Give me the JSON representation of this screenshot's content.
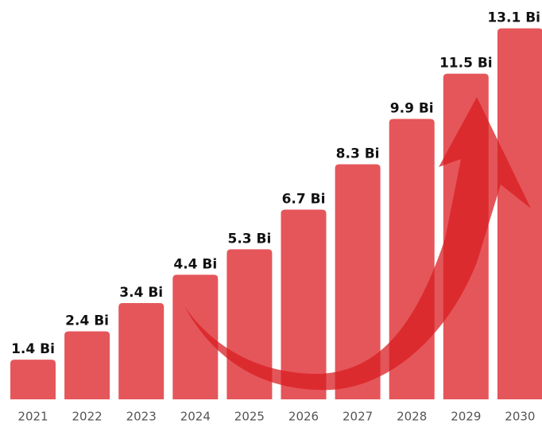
{
  "chart_data": {
    "type": "bar",
    "categories": [
      "2021",
      "2022",
      "2023",
      "2024",
      "2025",
      "2026",
      "2027",
      "2028",
      "2029",
      "2030"
    ],
    "values": [
      1.4,
      2.4,
      3.4,
      4.4,
      5.3,
      6.7,
      8.3,
      9.9,
      11.5,
      13.1
    ],
    "value_labels": [
      "1.4 Bi",
      "2.4 Bi",
      "3.4 Bi",
      "4.4 Bi",
      "5.3 Bi",
      "6.7 Bi",
      "8.3 Bi",
      "9.9 Bi",
      "11.5 Bi",
      "13.1 Bi"
    ],
    "color": "#e5565a"
  }
}
